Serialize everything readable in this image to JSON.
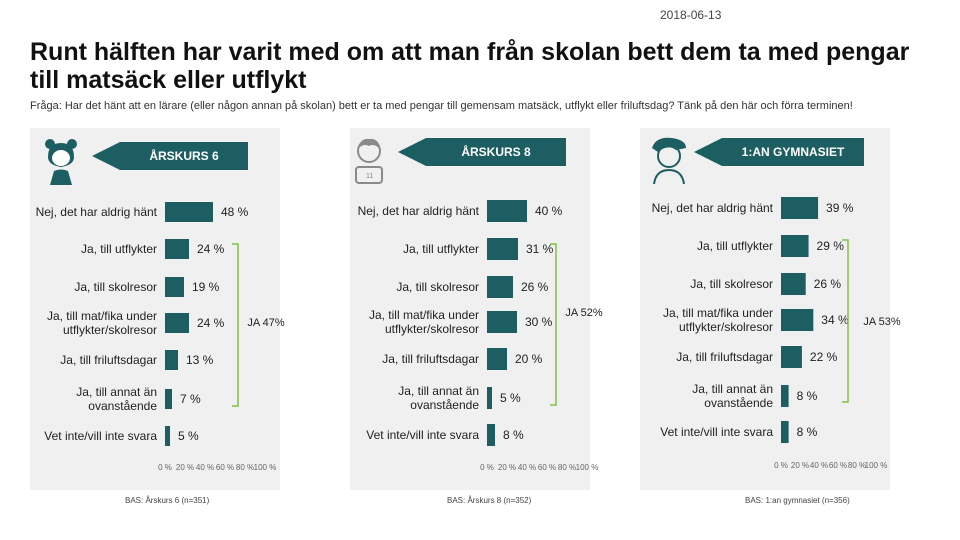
{
  "date": "2018-06-13",
  "title": "Runt hälften har varit med om att man från skolan bett dem ta med pengar till matsäck eller utflykt",
  "subtitle": "Fråga: Har det hänt att en lärare (eller någon annan på skolan) bett er ta med pengar till gemensam matsäck, utflykt eller friluftsdag? Tänk på den här och förra terminen!",
  "colors": {
    "bar": "#1c5e61",
    "bracket": "#7dc242",
    "panel": "#f0f0f0"
  },
  "icons": [
    "girl-icon",
    "boy-icon",
    "teen-icon"
  ],
  "chart_data": [
    {
      "type": "bar",
      "orientation": "horizontal",
      "title": "ÅRSKURS 6",
      "categories": [
        "Nej, det har aldrig hänt",
        "Ja, till utflykter",
        "Ja, till skolresor",
        "Ja, till mat/fika under utflykter/skolresor",
        "Ja, till friluftsdagar",
        "Ja, till annat än ovanstående",
        "Vet inte/vill inte svara"
      ],
      "category_labels": [
        [
          "Nej, det har aldrig hänt"
        ],
        [
          "Ja, till utflykter"
        ],
        [
          "Ja, till skolresor"
        ],
        [
          "Ja, till mat/fika under",
          "utflykter/skolresor"
        ],
        [
          "Ja, till friluftsdagar"
        ],
        [
          "Ja, till annat än",
          "ovanstående"
        ],
        [
          "Vet inte/vill inte svara"
        ]
      ],
      "values": [
        48,
        24,
        19,
        24,
        13,
        7,
        5
      ],
      "value_labels": [
        "48 %",
        "24 %",
        "19 %",
        "24 %",
        "13 %",
        "7 %",
        "5 %"
      ],
      "xlim": [
        0,
        100
      ],
      "ticks": [
        "0 %",
        "20 %",
        "40 %",
        "60 %",
        "80 %",
        "100 %"
      ],
      "bracket_label": "JA 47%",
      "base": "BAS: Årskurs 6 (n=351)"
    },
    {
      "type": "bar",
      "orientation": "horizontal",
      "title": "ÅRSKURS 8",
      "categories": [
        "Nej, det har aldrig hänt",
        "Ja, till utflykter",
        "Ja, till skolresor",
        "Ja, till mat/fika under utflykter/skolresor",
        "Ja, till friluftsdagar",
        "Ja, till annat än ovanstående",
        "Vet inte/vill inte svara"
      ],
      "category_labels": [
        [
          "Nej, det har aldrig hänt"
        ],
        [
          "Ja, till utflykter"
        ],
        [
          "Ja, till skolresor"
        ],
        [
          "Ja, till mat/fika under",
          "utflykter/skolresor"
        ],
        [
          "Ja, till friluftsdagar"
        ],
        [
          "Ja, till annat än",
          "ovanstående"
        ],
        [
          "Vet inte/vill inte svara"
        ]
      ],
      "values": [
        40,
        31,
        26,
        30,
        20,
        5,
        8
      ],
      "value_labels": [
        "40 %",
        "31 %",
        "26 %",
        "30 %",
        "20 %",
        "5 %",
        "8 %"
      ],
      "xlim": [
        0,
        100
      ],
      "ticks": [
        "0 %",
        "20 %",
        "40 %",
        "60 %",
        "80 %",
        "100 %"
      ],
      "bracket_label": "JA 52%",
      "base": "BAS: Årskurs 8 (n=352)"
    },
    {
      "type": "bar",
      "orientation": "horizontal",
      "title": "1:AN GYMNASIET",
      "categories": [
        "Nej, det har aldrig hänt",
        "Ja, till utflykter",
        "Ja, till skolresor",
        "Ja, till mat/fika under utflykter/skolresor",
        "Ja, till friluftsdagar",
        "Ja, till annat än ovanstående",
        "Vet inte/vill inte svara"
      ],
      "category_labels": [
        [
          "Nej, det har aldrig hänt"
        ],
        [
          "Ja, till utflykter"
        ],
        [
          "Ja, till skolresor"
        ],
        [
          "Ja, till mat/fika under",
          "utflykter/skolresor"
        ],
        [
          "Ja, till friluftsdagar"
        ],
        [
          "Ja, till annat än",
          "ovanstående"
        ],
        [
          "Vet inte/vill inte svara"
        ]
      ],
      "values": [
        39,
        29,
        26,
        34,
        22,
        8,
        8
      ],
      "value_labels": [
        "39 %",
        "29 %",
        "26 %",
        "34 %",
        "22 %",
        "8 %",
        "8 %"
      ],
      "xlim": [
        0,
        100
      ],
      "ticks": [
        "0 %",
        "20 %",
        "40 %",
        "60 %",
        "80 %",
        "100 %"
      ],
      "bracket_label": "JA 53%",
      "base": "BAS: 1:an gymnasiet (n=356)"
    }
  ]
}
